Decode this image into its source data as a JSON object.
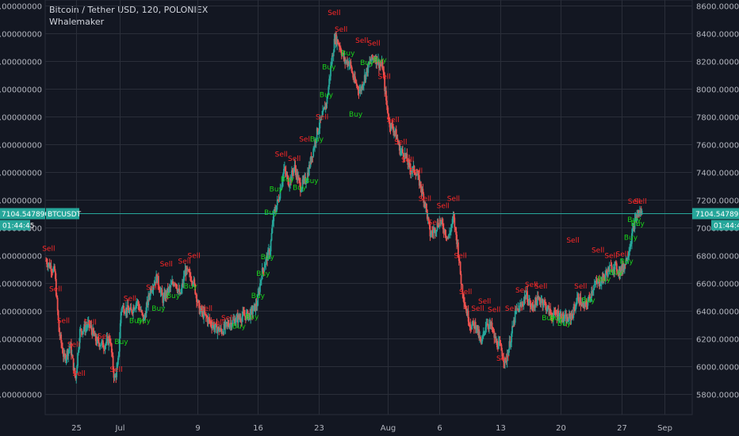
{
  "header": {
    "title": "Bitcoin / Tether USD, 120, POLONIEX",
    "indicator": "Whalemaker"
  },
  "colors": {
    "background": "#131722",
    "grid": "#2a2e39",
    "up": "#26a69a",
    "down": "#ef5350",
    "buy_label": "#19d219",
    "sell_label": "#ff2828",
    "price_line": "#26a69a"
  },
  "price_tag": {
    "symbol": "BTCUSDT",
    "price": "7104.54789000",
    "countdown": "01:44:45"
  },
  "chart_data": {
    "type": "candlestick",
    "ylim": [
      5650,
      8600
    ],
    "y_ticks": [
      5800,
      6000,
      6200,
      6400,
      6600,
      6800,
      7000,
      7200,
      7400,
      7600,
      7800,
      8000,
      8200,
      8400,
      8600
    ],
    "y_tick_labels": [
      "5800.00000000",
      "6000.00000000",
      "6200.00000000",
      "6400.00000000",
      "6600.00000000",
      "6800.00000000",
      "7000.00000000",
      "7200.00000000",
      "7400.00000000",
      "7600.00000000",
      "7800.00000000",
      "8000.00000000",
      "8200.00000000",
      "8400.00000000",
      "8600.00000000"
    ],
    "x_ticks": [
      {
        "label": "25",
        "day": 25
      },
      {
        "label": "Jul",
        "day": 30
      },
      {
        "label": "9",
        "day": 39
      },
      {
        "label": "16",
        "day": 46
      },
      {
        "label": "23",
        "day": 53
      },
      {
        "label": "Aug",
        "day": 61
      },
      {
        "label": "6",
        "day": 67
      },
      {
        "label": "13",
        "day": 74
      },
      {
        "label": "20",
        "day": 81
      },
      {
        "label": "27",
        "day": 88
      },
      {
        "label": "Sep",
        "day": 93
      }
    ],
    "xlim_days": [
      21.4,
      96.2
    ],
    "last_price": 7104.54789,
    "path": [
      [
        21.5,
        6760
      ],
      [
        22.5,
        6680
      ],
      [
        23.0,
        6250
      ],
      [
        23.6,
        6050
      ],
      [
        24.3,
        6150
      ],
      [
        24.9,
        5900
      ],
      [
        25.4,
        6250
      ],
      [
        26.5,
        6300
      ],
      [
        27.3,
        6180
      ],
      [
        28.2,
        6150
      ],
      [
        28.9,
        6200
      ],
      [
        29.4,
        5900
      ],
      [
        29.8,
        6000
      ],
      [
        30.2,
        6430
      ],
      [
        31.3,
        6390
      ],
      [
        32.0,
        6470
      ],
      [
        32.8,
        6330
      ],
      [
        33.6,
        6560
      ],
      [
        34.3,
        6640
      ],
      [
        35.0,
        6480
      ],
      [
        35.6,
        6540
      ],
      [
        36.4,
        6620
      ],
      [
        37.0,
        6500
      ],
      [
        37.6,
        6690
      ],
      [
        38.5,
        6620
      ],
      [
        39.2,
        6410
      ],
      [
        40.3,
        6330
      ],
      [
        41.0,
        6280
      ],
      [
        41.8,
        6250
      ],
      [
        42.5,
        6300
      ],
      [
        43.3,
        6330
      ],
      [
        44.2,
        6360
      ],
      [
        45.1,
        6370
      ],
      [
        45.9,
        6450
      ],
      [
        46.4,
        6660
      ],
      [
        46.9,
        6760
      ],
      [
        47.4,
        6840
      ],
      [
        47.8,
        7090
      ],
      [
        48.4,
        7210
      ],
      [
        49.0,
        7420
      ],
      [
        49.6,
        7320
      ],
      [
        50.2,
        7440
      ],
      [
        50.9,
        7290
      ],
      [
        51.6,
        7350
      ],
      [
        52.2,
        7510
      ],
      [
        52.8,
        7680
      ],
      [
        53.4,
        7790
      ],
      [
        54.0,
        7930
      ],
      [
        54.4,
        8150
      ],
      [
        54.9,
        8370
      ],
      [
        55.4,
        8320
      ],
      [
        56.0,
        8200
      ],
      [
        56.6,
        8190
      ],
      [
        57.1,
        8060
      ],
      [
        57.8,
        7980
      ],
      [
        58.4,
        8100
      ],
      [
        59.0,
        8200
      ],
      [
        59.5,
        8230
      ],
      [
        60.0,
        8180
      ],
      [
        60.4,
        8160
      ],
      [
        60.8,
        7920
      ],
      [
        61.2,
        7750
      ],
      [
        61.8,
        7700
      ],
      [
        62.4,
        7560
      ],
      [
        63.0,
        7520
      ],
      [
        63.6,
        7420
      ],
      [
        64.2,
        7410
      ],
      [
        64.8,
        7300
      ],
      [
        65.4,
        7150
      ],
      [
        65.9,
        6950
      ],
      [
        66.4,
        6980
      ],
      [
        67.0,
        7050
      ],
      [
        67.5,
        6990
      ],
      [
        68.0,
        6920
      ],
      [
        68.6,
        7070
      ],
      [
        69.1,
        6860
      ],
      [
        69.5,
        6600
      ],
      [
        70.0,
        6420
      ],
      [
        70.6,
        6290
      ],
      [
        71.2,
        6300
      ],
      [
        71.8,
        6150
      ],
      [
        72.4,
        6320
      ],
      [
        73.0,
        6280
      ],
      [
        73.5,
        6170
      ],
      [
        74.0,
        6140
      ],
      [
        74.6,
        6020
      ],
      [
        75.2,
        6190
      ],
      [
        75.8,
        6390
      ],
      [
        76.4,
        6430
      ],
      [
        77.0,
        6520
      ],
      [
        77.6,
        6420
      ],
      [
        78.2,
        6470
      ],
      [
        78.8,
        6480
      ],
      [
        79.4,
        6420
      ],
      [
        80.0,
        6360
      ],
      [
        80.6,
        6380
      ],
      [
        81.2,
        6350
      ],
      [
        81.8,
        6330
      ],
      [
        82.4,
        6380
      ],
      [
        83.0,
        6500
      ],
      [
        83.6,
        6420
      ],
      [
        84.2,
        6470
      ],
      [
        84.8,
        6580
      ],
      [
        85.4,
        6600
      ],
      [
        86.0,
        6640
      ],
      [
        86.6,
        6700
      ],
      [
        87.2,
        6720
      ],
      [
        87.8,
        6680
      ],
      [
        88.4,
        6730
      ],
      [
        89.0,
        6870
      ],
      [
        89.5,
        7030
      ],
      [
        90.0,
        7110
      ],
      [
        90.4,
        7104.5
      ]
    ],
    "labels": [
      {
        "text": "Sell",
        "day": 21.8,
        "price": 6830,
        "side": "sell"
      },
      {
        "text": "Sell",
        "day": 22.6,
        "price": 6540,
        "side": "sell"
      },
      {
        "text": "Sell",
        "day": 23.5,
        "price": 6310,
        "side": "sell"
      },
      {
        "text": "Sell",
        "day": 24.7,
        "price": 6140,
        "side": "sell"
      },
      {
        "text": "Sell",
        "day": 25.3,
        "price": 5930,
        "side": "sell"
      },
      {
        "text": "Sell",
        "day": 26.6,
        "price": 6300,
        "side": "sell"
      },
      {
        "text": "Sell",
        "day": 28.2,
        "price": 6200,
        "side": "sell"
      },
      {
        "text": "Sell",
        "day": 29.6,
        "price": 5960,
        "side": "sell"
      },
      {
        "text": "Buy",
        "day": 30.2,
        "price": 6160,
        "side": "buy"
      },
      {
        "text": "Sell",
        "day": 31.2,
        "price": 6470,
        "side": "sell"
      },
      {
        "text": "Buy",
        "day": 31.9,
        "price": 6310,
        "side": "buy"
      },
      {
        "text": "Buy",
        "day": 32.8,
        "price": 6310,
        "side": "buy"
      },
      {
        "text": "Sell",
        "day": 33.8,
        "price": 6550,
        "side": "sell"
      },
      {
        "text": "Buy",
        "day": 34.5,
        "price": 6400,
        "side": "buy"
      },
      {
        "text": "Sell",
        "day": 35.4,
        "price": 6720,
        "side": "sell"
      },
      {
        "text": "Buy",
        "day": 36.2,
        "price": 6490,
        "side": "buy"
      },
      {
        "text": "Sell",
        "day": 37.5,
        "price": 6740,
        "side": "sell"
      },
      {
        "text": "Buy",
        "day": 38.2,
        "price": 6560,
        "side": "buy"
      },
      {
        "text": "Sell",
        "day": 38.6,
        "price": 6780,
        "side": "sell"
      },
      {
        "text": "Sell",
        "day": 40.0,
        "price": 6400,
        "side": "sell"
      },
      {
        "text": "Sell",
        "day": 41.3,
        "price": 6300,
        "side": "sell"
      },
      {
        "text": "Sell",
        "day": 42.5,
        "price": 6330,
        "side": "sell"
      },
      {
        "text": "Buy",
        "day": 43.8,
        "price": 6270,
        "side": "buy"
      },
      {
        "text": "Buy",
        "day": 45.3,
        "price": 6340,
        "side": "buy"
      },
      {
        "text": "Buy",
        "day": 46.0,
        "price": 6490,
        "side": "buy"
      },
      {
        "text": "Buy",
        "day": 46.6,
        "price": 6650,
        "side": "buy"
      },
      {
        "text": "Buy",
        "day": 47.1,
        "price": 6770,
        "side": "buy"
      },
      {
        "text": "Buy",
        "day": 47.5,
        "price": 7090,
        "side": "buy"
      },
      {
        "text": "Buy",
        "day": 48.1,
        "price": 7260,
        "side": "buy"
      },
      {
        "text": "Sell",
        "day": 48.7,
        "price": 7510,
        "side": "sell"
      },
      {
        "text": "Buy",
        "day": 49.4,
        "price": 7330,
        "side": "buy"
      },
      {
        "text": "Sell",
        "day": 50.2,
        "price": 7480,
        "side": "sell"
      },
      {
        "text": "Buy",
        "day": 50.8,
        "price": 7270,
        "side": "buy"
      },
      {
        "text": "Sell",
        "day": 51.5,
        "price": 7620,
        "side": "sell"
      },
      {
        "text": "Buy",
        "day": 52.2,
        "price": 7320,
        "side": "buy"
      },
      {
        "text": "Buy",
        "day": 52.8,
        "price": 7620,
        "side": "buy"
      },
      {
        "text": "Sell",
        "day": 53.4,
        "price": 7780,
        "side": "sell"
      },
      {
        "text": "Buy",
        "day": 53.9,
        "price": 7940,
        "side": "buy"
      },
      {
        "text": "Buy",
        "day": 54.2,
        "price": 8140,
        "side": "buy"
      },
      {
        "text": "Sell",
        "day": 54.8,
        "price": 8530,
        "side": "sell"
      },
      {
        "text": "Sell",
        "day": 55.6,
        "price": 8410,
        "side": "sell"
      },
      {
        "text": "Buy",
        "day": 56.4,
        "price": 8240,
        "side": "buy"
      },
      {
        "text": "Buy",
        "day": 57.3,
        "price": 7800,
        "side": "buy"
      },
      {
        "text": "Sell",
        "day": 58.0,
        "price": 8330,
        "side": "sell"
      },
      {
        "text": "Buy",
        "day": 58.6,
        "price": 8170,
        "side": "buy"
      },
      {
        "text": "Sell",
        "day": 59.4,
        "price": 8310,
        "side": "sell"
      },
      {
        "text": "Buy",
        "day": 60.1,
        "price": 8190,
        "side": "buy"
      },
      {
        "text": "Sell",
        "day": 60.6,
        "price": 8070,
        "side": "sell"
      },
      {
        "text": "Sell",
        "day": 61.6,
        "price": 7760,
        "side": "sell"
      },
      {
        "text": "Sell",
        "day": 62.5,
        "price": 7600,
        "side": "sell"
      },
      {
        "text": "Sell",
        "day": 63.3,
        "price": 7470,
        "side": "sell"
      },
      {
        "text": "Sell",
        "day": 64.3,
        "price": 7390,
        "side": "sell"
      },
      {
        "text": "Sell",
        "day": 65.3,
        "price": 7190,
        "side": "sell"
      },
      {
        "text": "Sell",
        "day": 66.4,
        "price": 7020,
        "side": "sell"
      },
      {
        "text": "Sell",
        "day": 67.4,
        "price": 7140,
        "side": "sell"
      },
      {
        "text": "Sell",
        "day": 68.6,
        "price": 7190,
        "side": "sell"
      },
      {
        "text": "Sell",
        "day": 69.4,
        "price": 6780,
        "side": "sell"
      },
      {
        "text": "Sell",
        "day": 70.0,
        "price": 6520,
        "side": "sell"
      },
      {
        "text": "Sell",
        "day": 71.4,
        "price": 6400,
        "side": "sell"
      },
      {
        "text": "Sell",
        "day": 72.2,
        "price": 6450,
        "side": "sell"
      },
      {
        "text": "Sell",
        "day": 73.3,
        "price": 6390,
        "side": "sell"
      },
      {
        "text": "Sell",
        "day": 74.3,
        "price": 6040,
        "side": "sell"
      },
      {
        "text": "Sell",
        "day": 75.3,
        "price": 6400,
        "side": "sell"
      },
      {
        "text": "Sell",
        "day": 76.5,
        "price": 6530,
        "side": "sell"
      },
      {
        "text": "Sell",
        "day": 77.6,
        "price": 6570,
        "side": "sell"
      },
      {
        "text": "Sell",
        "day": 78.7,
        "price": 6560,
        "side": "sell"
      },
      {
        "text": "Buy",
        "day": 79.6,
        "price": 6330,
        "side": "buy"
      },
      {
        "text": "Buy",
        "day": 80.5,
        "price": 6330,
        "side": "buy"
      },
      {
        "text": "Buy",
        "day": 81.4,
        "price": 6290,
        "side": "buy"
      },
      {
        "text": "Sell",
        "day": 82.4,
        "price": 6890,
        "side": "sell"
      },
      {
        "text": "Sell",
        "day": 83.3,
        "price": 6560,
        "side": "sell"
      },
      {
        "text": "Buy",
        "day": 84.2,
        "price": 6460,
        "side": "buy"
      },
      {
        "text": "Sell",
        "day": 85.3,
        "price": 6820,
        "side": "sell"
      },
      {
        "text": "Buy",
        "day": 86.0,
        "price": 6610,
        "side": "buy"
      },
      {
        "text": "Sell",
        "day": 86.8,
        "price": 6780,
        "side": "sell"
      },
      {
        "text": "Buy",
        "day": 87.4,
        "price": 6660,
        "side": "buy"
      },
      {
        "text": "Sell",
        "day": 88.1,
        "price": 6790,
        "side": "sell"
      },
      {
        "text": "Buy",
        "day": 88.6,
        "price": 6740,
        "side": "buy"
      },
      {
        "text": "Buy",
        "day": 89.1,
        "price": 6910,
        "side": "buy"
      },
      {
        "text": "Buy",
        "day": 89.5,
        "price": 7040,
        "side": "buy"
      },
      {
        "text": "Buy",
        "day": 89.9,
        "price": 7010,
        "side": "buy"
      },
      {
        "text": "Sell",
        "day": 89.5,
        "price": 7170,
        "side": "sell"
      },
      {
        "text": "Sell",
        "day": 90.2,
        "price": 7170,
        "side": "sell"
      }
    ]
  }
}
